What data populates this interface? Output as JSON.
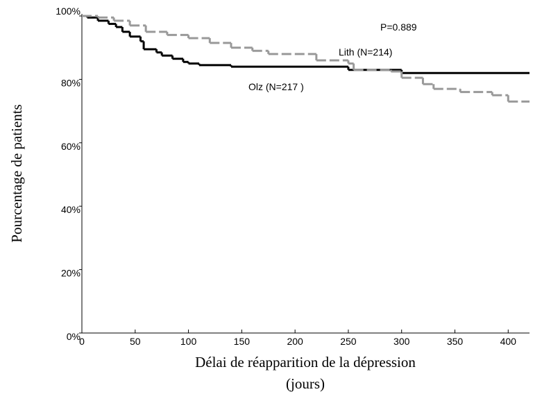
{
  "chart_data": {
    "type": "step",
    "ylabel": "Pourcentage de patients",
    "xlabel": [
      "Délai de réapparition de la dépression",
      "(jours)"
    ],
    "annotation": "P=0.889",
    "xlim": [
      0,
      420
    ],
    "xticks": [
      0,
      50,
      100,
      150,
      200,
      250,
      300,
      350,
      400
    ],
    "ylim": [
      0,
      100
    ],
    "yticks": [
      {
        "value": 0,
        "label": "0%"
      },
      {
        "value": 20,
        "label": "20%"
      },
      {
        "value": 40,
        "label": "40%"
      },
      {
        "value": 60,
        "label": "60%"
      },
      {
        "value": 80,
        "label": "80%"
      },
      {
        "value": 100,
        "label": "100%"
      }
    ],
    "series": [
      {
        "name": "Olz (N=217 )",
        "color": "#000000",
        "dash": false,
        "x": [
          0,
          5,
          15,
          25,
          32,
          38,
          45,
          55,
          58,
          70,
          75,
          85,
          95,
          100,
          110,
          140,
          250,
          300,
          420
        ],
        "values": [
          100,
          99.5,
          98.5,
          97.5,
          96.5,
          95,
          93.5,
          92,
          89.5,
          88.5,
          87.5,
          86.5,
          85.5,
          85,
          84.5,
          84,
          83,
          82,
          82
        ]
      },
      {
        "name": "Lith (N=214)",
        "color": "#999999",
        "dash": true,
        "x": [
          0,
          15,
          30,
          45,
          60,
          80,
          100,
          120,
          140,
          160,
          175,
          220,
          250,
          255,
          290,
          300,
          320,
          330,
          355,
          385,
          400,
          420
        ],
        "values": [
          100,
          99.5,
          98.5,
          97,
          95,
          94,
          93,
          91.5,
          90,
          89,
          88,
          86,
          85,
          83,
          82.5,
          80.5,
          78.5,
          77,
          76,
          75,
          73,
          73
        ]
      }
    ]
  }
}
